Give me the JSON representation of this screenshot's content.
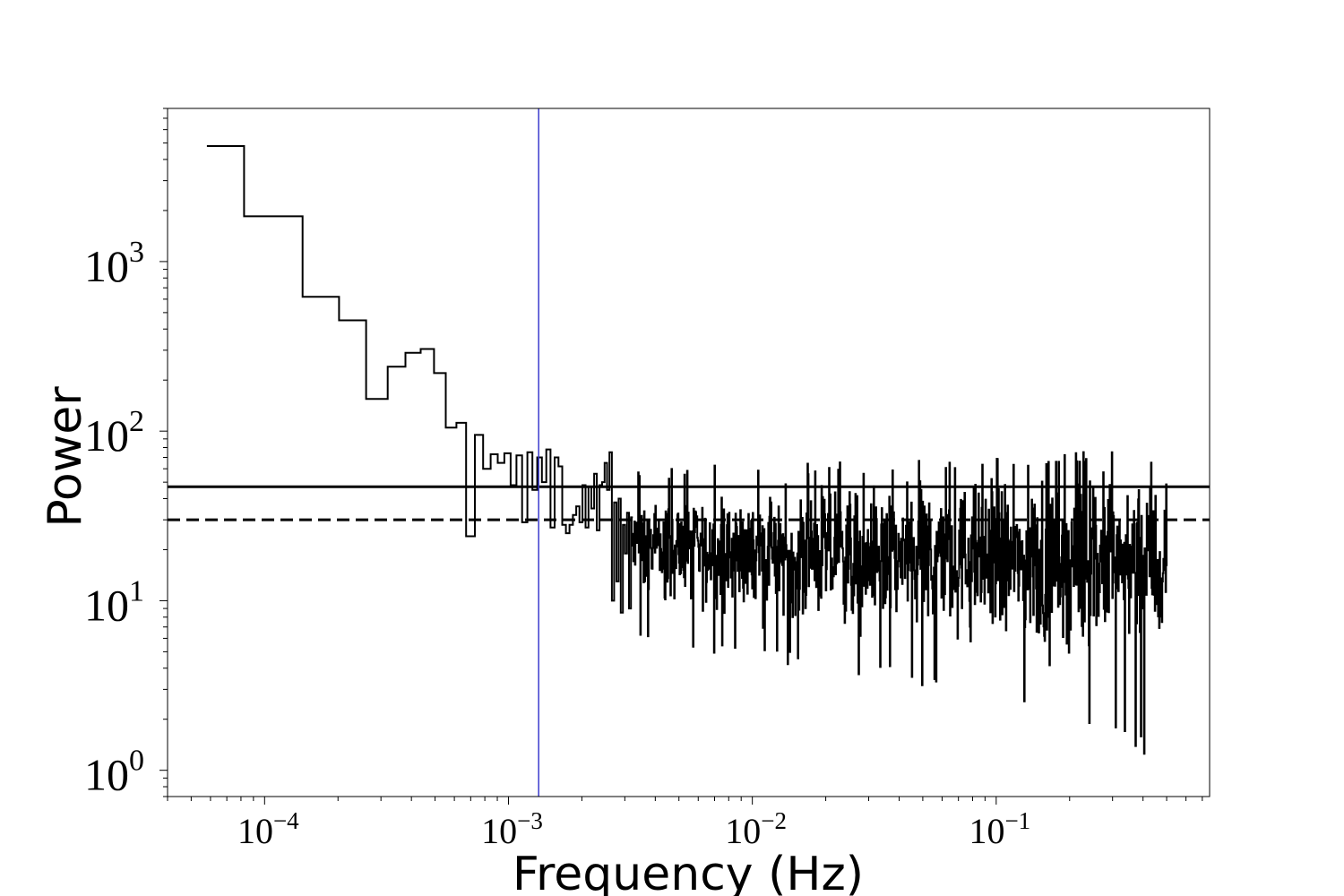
{
  "chart_data": {
    "type": "line",
    "title": "",
    "xlabel": "Frequency (Hz)",
    "ylabel": "Power",
    "xscale": "log",
    "yscale": "log",
    "xlim": [
      4e-05,
      0.75
    ],
    "ylim": [
      0.7,
      8000
    ],
    "grid": false,
    "legend": "none",
    "x_ticks": [
      {
        "value": 0.0001,
        "base": "10",
        "exp": "−4"
      },
      {
        "value": 0.001,
        "base": "10",
        "exp": "−3"
      },
      {
        "value": 0.01,
        "base": "10",
        "exp": "−2"
      },
      {
        "value": 0.1,
        "base": "10",
        "exp": "−1"
      }
    ],
    "y_ticks": [
      {
        "value": 1,
        "base": "10",
        "exp": "0"
      },
      {
        "value": 10,
        "base": "10",
        "exp": "1"
      },
      {
        "value": 100,
        "base": "10",
        "exp": "2"
      },
      {
        "value": 1000,
        "base": "10",
        "exp": "3"
      }
    ],
    "series": [
      {
        "style": "steps-mid",
        "color": "#000000",
        "x": [
          5.8e-05,
          0.000117,
          0.000175,
          0.000233,
          0.000292,
          0.00035,
          0.000408,
          0.000467,
          0.000525,
          0.000583,
          0.000642,
          0.0007,
          0.000758,
          0.000817,
          0.000875,
          0.000933,
          0.000992,
          0.00105,
          0.001108,
          0.001167,
          0.001225,
          0.001283,
          0.001342,
          0.0014,
          0.001458,
          0.001517,
          0.001575,
          0.001633,
          0.001692,
          0.00175,
          0.001808,
          0.001867,
          0.001925,
          0.001983,
          0.002042,
          0.0021,
          0.002158,
          0.002217,
          0.002275,
          0.002333,
          0.002392,
          0.00245,
          0.002508,
          0.002567,
          0.002625,
          0.002683,
          0.002742,
          0.0028,
          0.002858,
          0.002917,
          0.002975,
          0.003033,
          0.003092,
          0.00315,
          0.003208
        ],
        "y": [
          4800,
          1850,
          620,
          450,
          155,
          240,
          290,
          305,
          220,
          105,
          112,
          24,
          95,
          60,
          73,
          65,
          74,
          48,
          72,
          29,
          75,
          45,
          70,
          50,
          78,
          27,
          70,
          62,
          28,
          25,
          28,
          32,
          36,
          29,
          48,
          27,
          47,
          35,
          56,
          26,
          48,
          50,
          65,
          45,
          75,
          10,
          38,
          13,
          40,
          8.5,
          28,
          19,
          33,
          9,
          31
        ]
      }
    ],
    "noise_region": {
      "x_range": [
        0.0032,
        0.5
      ],
      "center_start": 20,
      "center_end": 16,
      "spread_start": 0.28,
      "spread_end": 0.6,
      "min_start": 5.5,
      "min_end": 1.05,
      "max_start": 60,
      "max_end": 78
    },
    "reference_lines": [
      {
        "orientation": "horizontal",
        "y": 47,
        "style": "solid",
        "color": "#000000"
      },
      {
        "orientation": "horizontal",
        "y": 30,
        "style": "dashed",
        "color": "#000000"
      },
      {
        "orientation": "vertical",
        "x": 0.00133,
        "style": "solid",
        "color": "#3a3acd"
      }
    ]
  }
}
